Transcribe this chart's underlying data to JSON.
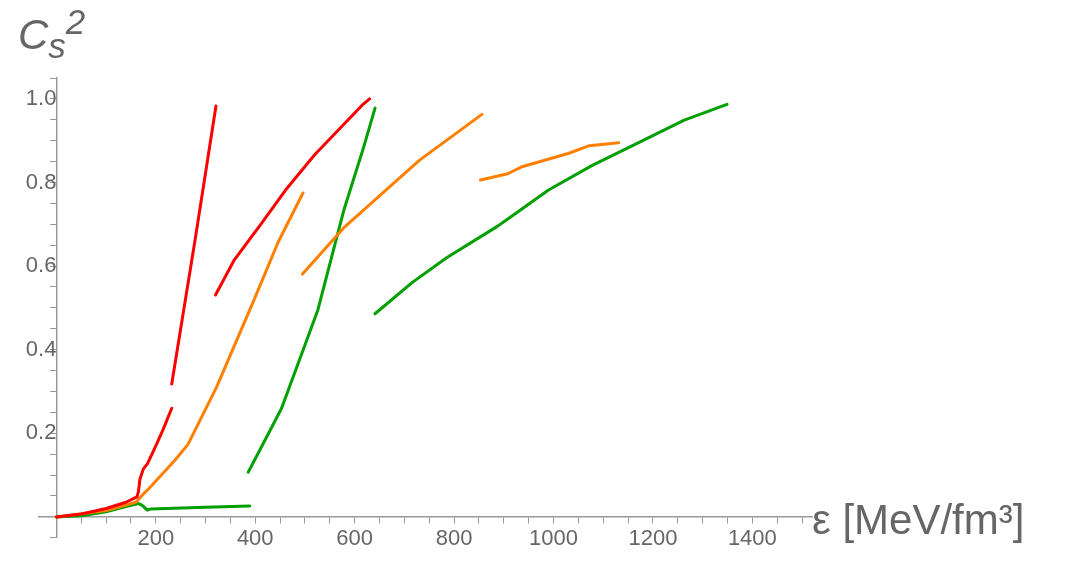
{
  "chart_data": {
    "type": "line",
    "xlabel": "ε [MeV/fm³]",
    "ylabel": "C$_{s}$$^{2}$",
    "xlim": [
      -35,
      1520
    ],
    "ylim": [
      -0.05,
      1.05
    ],
    "xticks": [
      {
        "value": 50,
        "label": null
      },
      {
        "value": 100,
        "label": null
      },
      {
        "value": 150,
        "label": null
      },
      200,
      {
        "value": 250,
        "label": null
      },
      {
        "value": 300,
        "label": null
      },
      {
        "value": 350,
        "label": null
      },
      400,
      {
        "value": 450,
        "label": null
      },
      {
        "value": 500,
        "label": null
      },
      {
        "value": 550,
        "label": null
      },
      600,
      {
        "value": 650,
        "label": null
      },
      {
        "value": 700,
        "label": null
      },
      {
        "value": 750,
        "label": null
      },
      800,
      {
        "value": 850,
        "label": null
      },
      {
        "value": 900,
        "label": null
      },
      {
        "value": 950,
        "label": null
      },
      1000,
      {
        "value": 1050,
        "label": null
      },
      {
        "value": 1100,
        "label": null
      },
      {
        "value": 1150,
        "label": null
      },
      1200,
      {
        "value": 1250,
        "label": null
      },
      {
        "value": 1300,
        "label": null
      },
      {
        "value": 1350,
        "label": null
      },
      1400,
      {
        "value": 1450,
        "label": null
      },
      {
        "value": 1500,
        "label": null
      }
    ],
    "yticks": [
      {
        "value": -0.05,
        "label": null
      },
      {
        "value": 0.05,
        "label": null
      },
      {
        "value": 0.1,
        "label": null
      },
      {
        "value": 0.15,
        "label": null
      },
      0.2,
      {
        "value": 0.25,
        "label": null
      },
      {
        "value": 0.3,
        "label": null
      },
      {
        "value": 0.35,
        "label": null
      },
      0.4,
      {
        "value": 0.45,
        "label": null
      },
      {
        "value": 0.5,
        "label": null
      },
      {
        "value": 0.55,
        "label": null
      },
      0.6,
      {
        "value": 0.65,
        "label": null
      },
      {
        "value": 0.7,
        "label": null
      },
      {
        "value": 0.75,
        "label": null
      },
      0.8,
      {
        "value": 0.85,
        "label": null
      },
      {
        "value": 0.9,
        "label": null
      },
      {
        "value": 0.95,
        "label": null
      },
      {
        "value": 1.0,
        "label": "1.0"
      },
      {
        "value": 1.05,
        "label": null
      }
    ],
    "grid": false,
    "legend": false,
    "marker": "none",
    "line_style": "solid",
    "series": [
      {
        "color": "#ff0000",
        "x": [
          0,
          50,
          100,
          140,
          162,
          165,
          168,
          175,
          183,
          200,
          215,
          232
        ],
        "values": [
          0,
          0.007,
          0.02,
          0.035,
          0.048,
          0.06,
          0.09,
          0.115,
          0.127,
          0.17,
          0.21,
          0.26
        ]
      },
      {
        "color": "#ff0000",
        "x": [
          232,
          280,
          321
        ],
        "values": [
          0.318,
          0.67,
          0.983
        ]
      },
      {
        "color": "#ff0000",
        "x": [
          320,
          358,
          410,
          461,
          520,
          615,
          630
        ],
        "values": [
          0.531,
          0.615,
          0.698,
          0.782,
          0.867,
          0.985,
          1.0
        ]
      },
      {
        "color": "#ff8000",
        "x": [
          0,
          100,
          160,
          175,
          183,
          238,
          265,
          322,
          395,
          446,
          496
        ],
        "values": [
          0,
          0.015,
          0.035,
          0.055,
          0.064,
          0.135,
          0.174,
          0.31,
          0.512,
          0.657,
          0.775
        ]
      },
      {
        "color": "#ff8000",
        "x": [
          495,
          580,
          730,
          856
        ],
        "values": [
          0.581,
          0.694,
          0.853,
          0.963
        ]
      },
      {
        "color": "#ff8000",
        "x": [
          853,
          908,
          935,
          1031,
          1072,
          1131
        ],
        "values": [
          0.806,
          0.821,
          0.837,
          0.87,
          0.888,
          0.895
        ]
      },
      {
        "color": "#00a000",
        "x": [
          0,
          50,
          100,
          140,
          165,
          172,
          183,
          190,
          300,
          389
        ],
        "values": [
          0,
          0.003,
          0.012,
          0.025,
          0.032,
          0.028,
          0.016,
          0.019,
          0.023,
          0.026
        ]
      },
      {
        "color": "#00a000",
        "x": [
          386,
          453,
          526,
          578,
          618,
          641
        ],
        "values": [
          0.107,
          0.26,
          0.495,
          0.733,
          0.884,
          0.978
        ]
      },
      {
        "color": "#00a000",
        "x": [
          641,
          716,
          785,
          887,
          990,
          1078,
          1160,
          1263,
          1349
        ],
        "values": [
          0.486,
          0.561,
          0.62,
          0.695,
          0.782,
          0.841,
          0.889,
          0.949,
          0.987
        ]
      }
    ]
  }
}
